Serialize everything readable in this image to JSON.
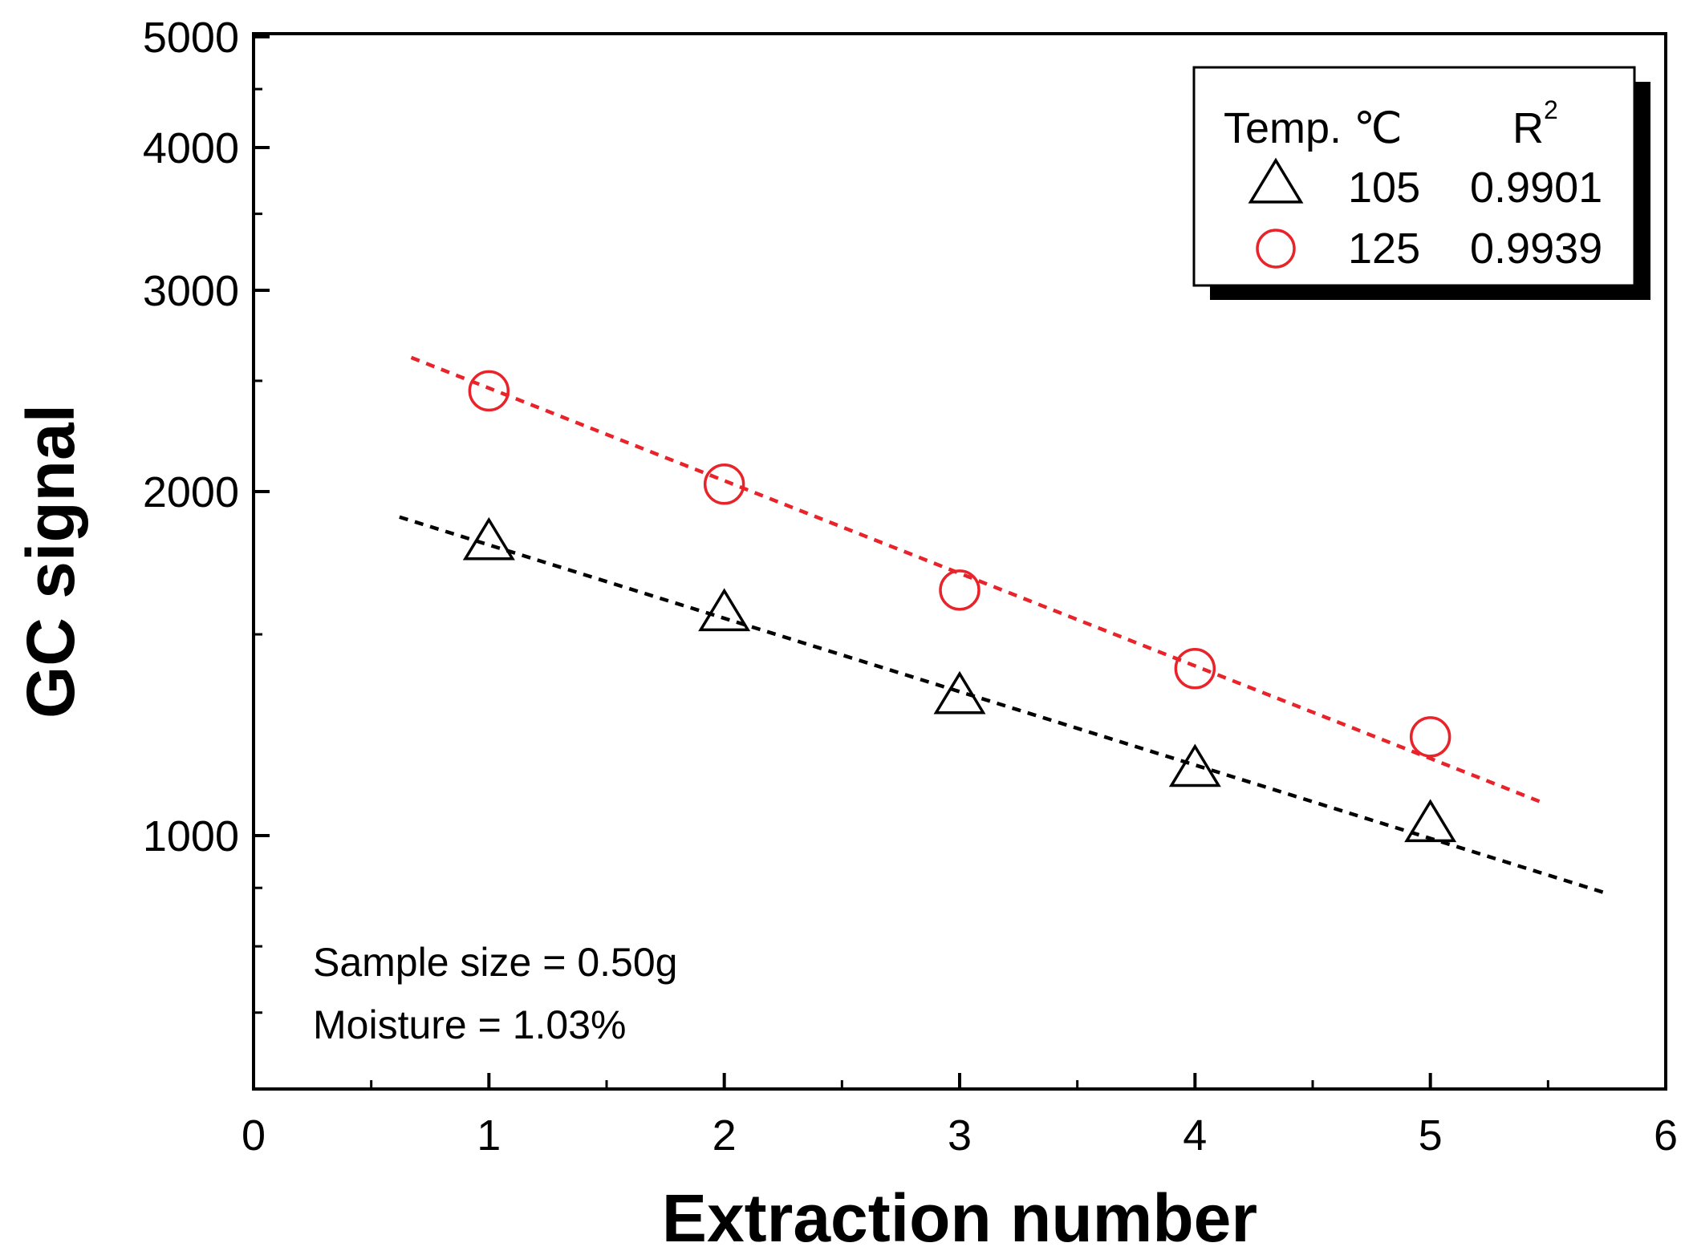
{
  "chart_data": {
    "type": "scatter",
    "title": "",
    "xlabel": "Extraction number",
    "ylabel": "GC signal",
    "xlim": [
      0,
      6
    ],
    "ylim": [
      600,
      5000
    ],
    "yscale": "log",
    "x_ticks": [
      0,
      1,
      2,
      3,
      4,
      5,
      6
    ],
    "y_ticks": [
      1000,
      2000,
      3000,
      4000,
      5000
    ],
    "series": [
      {
        "name": "105",
        "r2": "0.9901",
        "marker": "triangle",
        "color": "#000000",
        "x": [
          1,
          2,
          3,
          4,
          5
        ],
        "values": [
          1800,
          1560,
          1320,
          1140,
          1020
        ],
        "fit": {
          "x": [
            0.62,
            5.75
          ],
          "y": [
            1900,
            890
          ]
        }
      },
      {
        "name": "125",
        "r2": "0.9939",
        "marker": "circle",
        "color": "#e8232a",
        "x": [
          1,
          2,
          3,
          4,
          5
        ],
        "values": [
          2450,
          2030,
          1640,
          1400,
          1220
        ],
        "fit": {
          "x": [
            0.67,
            5.47
          ],
          "y": [
            2620,
            1070
          ]
        }
      }
    ],
    "legend": {
      "position": "top-right",
      "header_temp": "Temp. ℃",
      "header_r": "R",
      "header_r_sup": "2"
    },
    "annotations": [
      "Sample size = 0.50g",
      "Moisture = 1.03%"
    ]
  }
}
